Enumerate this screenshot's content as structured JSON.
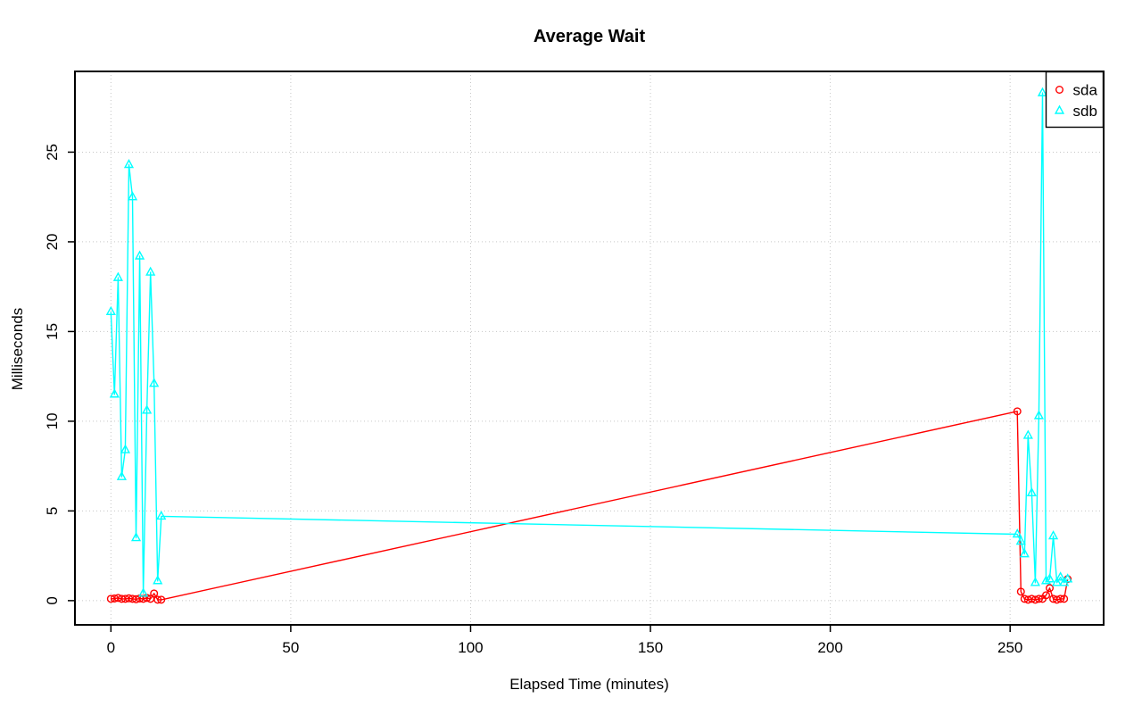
{
  "chart_data": {
    "type": "line",
    "title": "Average Wait",
    "xlabel": "Elapsed Time (minutes)",
    "ylabel": "Milliseconds",
    "xlim": [
      -10,
      276
    ],
    "ylim": [
      -1.35,
      29.5
    ],
    "xticks": [
      0,
      50,
      100,
      150,
      200,
      250
    ],
    "yticks": [
      0,
      5,
      10,
      15,
      20,
      25
    ],
    "grid": {
      "style": "dotted",
      "color": "#C6C6C6"
    },
    "axis_color": "#000000",
    "background": "#FFFFFF",
    "legend": {
      "position": "top-right"
    },
    "series": [
      {
        "name": "sda",
        "color": "#FF0000",
        "marker": "circle",
        "x": [
          0,
          1,
          2,
          3,
          4,
          5,
          6,
          7,
          8,
          9,
          10,
          11,
          12,
          13,
          14,
          252,
          253,
          254,
          255,
          256,
          257,
          258,
          259,
          260,
          261,
          262,
          263,
          264,
          265,
          266
        ],
        "y": [
          0.1,
          0.12,
          0.15,
          0.1,
          0.1,
          0.13,
          0.1,
          0.08,
          0.12,
          0.1,
          0.15,
          0.1,
          0.4,
          0.05,
          0.05,
          10.55,
          0.5,
          0.1,
          0.05,
          0.1,
          0.05,
          0.1,
          0.1,
          0.3,
          0.7,
          0.1,
          0.05,
          0.1,
          0.1,
          1.2
        ]
      },
      {
        "name": "sdb",
        "color": "#00FFFF",
        "marker": "triangle",
        "x": [
          0,
          1,
          2,
          3,
          4,
          5,
          6,
          7,
          8,
          9,
          10,
          11,
          12,
          13,
          14,
          252,
          253,
          254,
          255,
          256,
          257,
          258,
          259,
          260,
          261,
          262,
          263,
          264,
          265,
          266
        ],
        "y": [
          16.1,
          11.5,
          18.0,
          6.9,
          8.4,
          24.3,
          22.5,
          3.5,
          19.2,
          0.4,
          10.6,
          18.3,
          12.1,
          1.1,
          4.7,
          3.7,
          3.3,
          2.6,
          9.2,
          6.0,
          1.0,
          10.3,
          28.3,
          1.1,
          1.2,
          3.6,
          1.0,
          1.3,
          1.0,
          1.2
        ]
      }
    ]
  }
}
